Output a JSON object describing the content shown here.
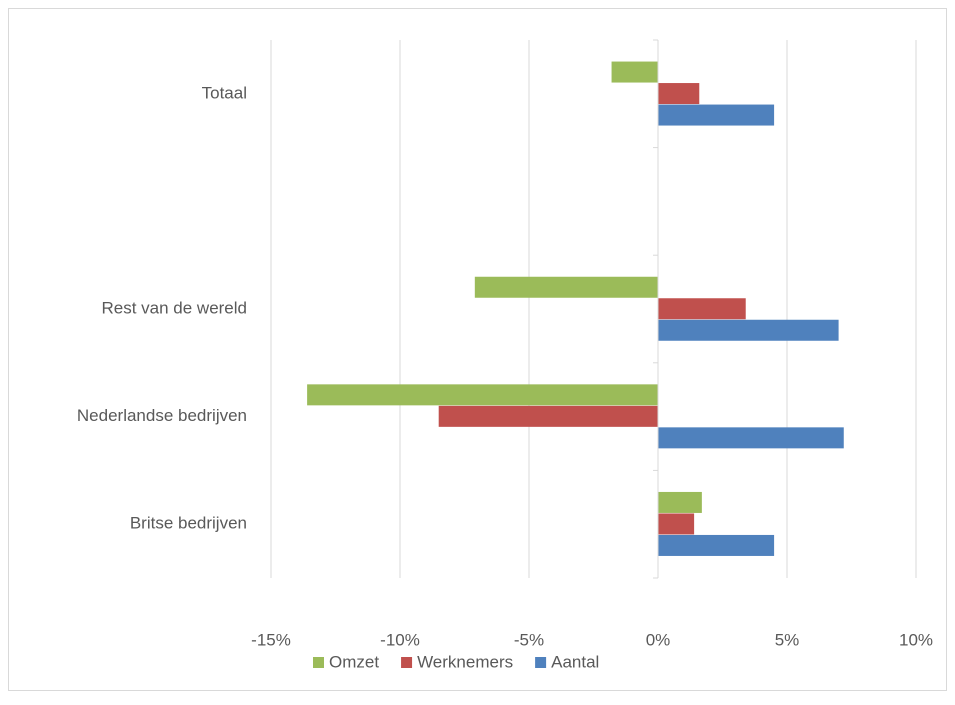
{
  "chart_data": {
    "type": "hbar",
    "categories": [
      "Totaal",
      null,
      "Rest van de wereld",
      "Nederlandse bedrijven",
      "Britse bedrijven"
    ],
    "series": [
      {
        "name": "Omzet",
        "color": "#9bbb59",
        "values": [
          -1.8,
          null,
          -7.1,
          -13.6,
          1.7
        ]
      },
      {
        "name": "Werknemers",
        "color": "#c0504d",
        "values": [
          1.6,
          null,
          3.4,
          -8.5,
          1.4
        ]
      },
      {
        "name": "Aantal",
        "color": "#4f81bd",
        "values": [
          4.5,
          null,
          7.0,
          7.2,
          4.5
        ]
      }
    ],
    "xlim": [
      -15,
      10
    ],
    "xticks": [
      {
        "value": -15,
        "label": "-15%"
      },
      {
        "value": -10,
        "label": "-10%"
      },
      {
        "value": -5,
        "label": "-5%"
      },
      {
        "value": 0,
        "label": "0%"
      },
      {
        "value": 5,
        "label": "5%"
      },
      {
        "value": 10,
        "label": "10%"
      }
    ],
    "grid": true,
    "legend": "bottom"
  }
}
